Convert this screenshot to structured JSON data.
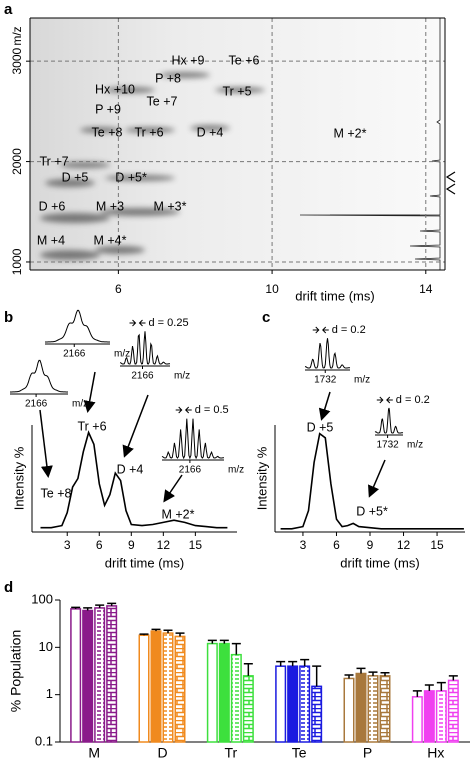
{
  "chart_data": [
    {
      "type": "ion-map",
      "panel": "a",
      "y_label": "m/z",
      "x_label": "drift time (ms)",
      "xlim": [
        3.7,
        14.5
      ],
      "ylim": [
        920,
        3430
      ],
      "xticks": [
        6,
        10,
        14
      ],
      "yticks": [
        1000,
        2000,
        3000
      ],
      "grid": "dashed",
      "labels": [
        {
          "text": "Hx +9",
          "color": "#e83ee8"
        },
        {
          "text": "Te +6",
          "color": "#1a1ab8"
        },
        {
          "text": "Hx +10",
          "color": "#e83ee8"
        },
        {
          "text": "P +8",
          "color": "#b07a2a"
        },
        {
          "text": "P +9",
          "color": "#b07a2a"
        },
        {
          "text": "Te +7",
          "color": "#1a1ab8"
        },
        {
          "text": "Tr +5",
          "color": "#3cd63c"
        },
        {
          "text": "Te +8",
          "color": "#1a1ab8"
        },
        {
          "text": "Tr +6",
          "color": "#3cd63c"
        },
        {
          "text": "D +4",
          "color": "#f0801e"
        },
        {
          "text": "M +2*",
          "color": "#8e2c9c"
        },
        {
          "text": "Tr +7",
          "color": "#3cd63c"
        },
        {
          "text": "D +5",
          "color": "#f0801e"
        },
        {
          "text": "D +5*",
          "color": "#f0801e"
        },
        {
          "text": "D +6",
          "color": "#f0801e"
        },
        {
          "text": "M +3",
          "color": "#8e2c9c"
        },
        {
          "text": "M +3*",
          "color": "#8e2c9c"
        },
        {
          "text": "M +4",
          "color": "#8e2c9c"
        },
        {
          "text": "M +4*",
          "color": "#8e2c9c"
        }
      ]
    },
    {
      "type": "line",
      "panel": "b",
      "x_label": "drift time (ms)",
      "y_label": "Intensity %",
      "color": "#000000",
      "xlim": [
        -0.3,
        18.9
      ],
      "ylim": [
        0,
        1
      ],
      "xticks": [
        3,
        6,
        9,
        12,
        15
      ],
      "x": [
        0.5,
        1.5,
        2.5,
        3,
        3.5,
        4,
        4.5,
        5,
        5.5,
        6,
        6.5,
        7,
        7.5,
        8,
        8.5,
        9,
        10,
        11,
        12,
        13,
        14,
        15,
        16,
        17,
        18
      ],
      "values": [
        0.04,
        0.04,
        0.06,
        0.18,
        0.42,
        0.5,
        0.75,
        0.93,
        0.82,
        0.45,
        0.25,
        0.35,
        0.55,
        0.48,
        0.2,
        0.07,
        0.06,
        0.07,
        0.09,
        0.11,
        0.09,
        0.06,
        0.05,
        0.04,
        0.04
      ],
      "labels": [
        {
          "text": "Tr +6",
          "color": "#3cd63c"
        },
        {
          "text": "Te +8",
          "color": "#1a1ab8"
        },
        {
          "text": "D +4",
          "color": "#f0801e"
        },
        {
          "text": "M +2*",
          "color": "#8e2c9c"
        }
      ],
      "insets": [
        {
          "tick": "2166",
          "x_label": "m/z"
        },
        {
          "tick": "2166",
          "x_label": "m/z"
        },
        {
          "tick": "2166",
          "x_label": "m/z",
          "note": "d = 0.25"
        },
        {
          "tick": "2166",
          "x_label": "m/z",
          "note": "d = 0.5"
        }
      ]
    },
    {
      "type": "line",
      "panel": "c",
      "x_label": "drift time (ms)",
      "y_label": "Intensity %",
      "color": "#000000",
      "xlim": [
        0.5,
        17.5
      ],
      "ylim": [
        0,
        1
      ],
      "xticks": [
        3,
        6,
        9,
        12,
        15
      ],
      "x": [
        1,
        2,
        3,
        3.5,
        4,
        4.5,
        5,
        5.5,
        6,
        6.5,
        7,
        7.5,
        8,
        9,
        10,
        12,
        14,
        16,
        17.4
      ],
      "values": [
        0.03,
        0.03,
        0.05,
        0.2,
        0.65,
        0.92,
        0.88,
        0.45,
        0.12,
        0.05,
        0.06,
        0.08,
        0.05,
        0.04,
        0.03,
        0.03,
        0.03,
        0.03,
        0.03
      ],
      "labels": [
        {
          "text": "D +5",
          "color": "#f0801e"
        },
        {
          "text": "D +5*",
          "color": "#f0801e"
        }
      ],
      "insets": [
        {
          "tick": "1732",
          "x_label": "m/z",
          "note": "d = 0.2"
        },
        {
          "tick": "1732",
          "x_label": "m/z",
          "note": "d = 0.2"
        }
      ]
    },
    {
      "type": "bar",
      "panel": "d",
      "y_label": "% Population",
      "log_scale": true,
      "ylim": [
        0.1,
        100
      ],
      "yticks": [
        0.1,
        1,
        10,
        100
      ],
      "categories": [
        "M",
        "D",
        "Tr",
        "Te",
        "P",
        "Hx"
      ],
      "colors": [
        "#8a1a8a",
        "#f08a1e",
        "#3de03d",
        "#1a1ae0",
        "#a8783c",
        "#f040f0"
      ],
      "series": [
        {
          "style": "open",
          "values": [
            65,
            18,
            12,
            4,
            2.2,
            0.9
          ],
          "errors": [
            5,
            1,
            2,
            1,
            0.4,
            0.3
          ]
        },
        {
          "style": "filled",
          "values": [
            60,
            22,
            12,
            4,
            2.8,
            1.2
          ],
          "errors": [
            8,
            2,
            2,
            1,
            0.8,
            0.4
          ]
        },
        {
          "style": "dashed",
          "values": [
            68,
            20,
            7,
            4,
            2.5,
            1.2
          ],
          "errors": [
            10,
            3,
            5,
            1.5,
            0.5,
            0.6
          ]
        },
        {
          "style": "brick",
          "values": [
            75,
            17,
            2.5,
            1.5,
            2.5,
            2
          ],
          "errors": [
            10,
            3,
            2,
            2.5,
            0.4,
            0.5
          ]
        }
      ]
    }
  ]
}
